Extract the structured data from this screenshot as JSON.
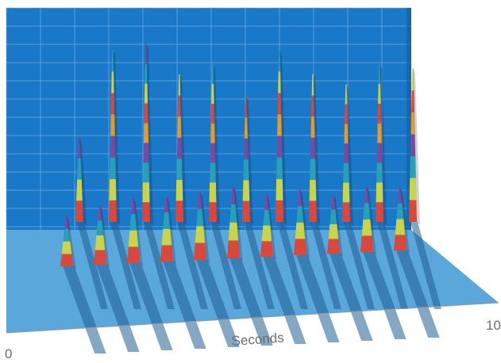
{
  "chart_data": {
    "type": "area",
    "title": "",
    "xlabel": "Seconds",
    "ylabel": "",
    "x_tick_labels": [
      "0",
      "10"
    ],
    "xlim": [
      0,
      10
    ],
    "grid": true,
    "legend": "none",
    "colors": {
      "wall": "#1a78c8",
      "grid": "#6fb0e6",
      "floor_light": "#5aa7dc",
      "floor_dark": "#2d7dbf",
      "band_red": "#d9483b",
      "band_yellow": "#c9d44a",
      "band_teal": "#2aa0b8",
      "band_purple": "#7a4aa0",
      "band_orange": "#e59a2a",
      "shadow": "#1f5e94"
    },
    "series": [
      {
        "values": [
          0.42,
          0.85,
          0.88,
          0.73,
          0.78,
          0.62,
          0.85,
          0.73,
          0.68,
          0.78,
          0.76
        ]
      },
      {
        "values": [
          0.38,
          0.45,
          0.5,
          0.5,
          0.52,
          0.55,
          0.48,
          0.5,
          0.45,
          0.5,
          0.48
        ]
      }
    ]
  }
}
